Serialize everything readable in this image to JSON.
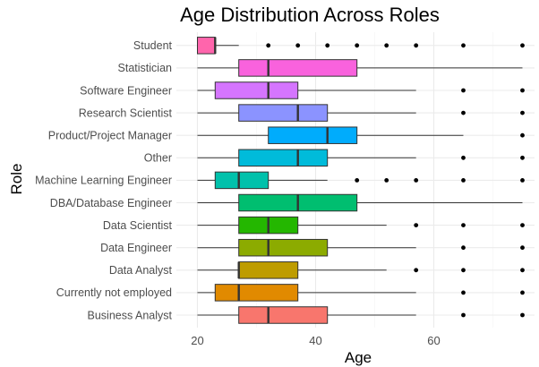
{
  "chart_data": {
    "type": "boxplot",
    "orientation": "horizontal",
    "title": "Age Distribution Across Roles",
    "xlabel": "Age",
    "ylabel": "Role",
    "xlim": [
      17,
      78
    ],
    "xticks": [
      20,
      40,
      60
    ],
    "grid": true,
    "legend": "none",
    "categories": [
      "Business Analyst",
      "Currently not employed",
      "Data Analyst",
      "Data Engineer",
      "Data Scientist",
      "DBA/Database Engineer",
      "Machine Learning Engineer",
      "Other",
      "Product/Project Manager",
      "Research Scientist",
      "Software Engineer",
      "Statistician",
      "Student"
    ],
    "boxes": [
      {
        "category": "Business Analyst",
        "whisker_low": 20,
        "q1": 27,
        "median": 32,
        "q3": 42,
        "whisker_high": 57,
        "outliers": [
          65,
          75
        ],
        "color": "#F8766D"
      },
      {
        "category": "Currently not employed",
        "whisker_low": 20,
        "q1": 23,
        "median": 27,
        "q3": 37,
        "whisker_high": 57,
        "outliers": [
          65,
          75
        ],
        "color": "#E18A00"
      },
      {
        "category": "Data Analyst",
        "whisker_low": 20,
        "q1": 27,
        "median": 27,
        "q3": 37,
        "whisker_high": 52,
        "outliers": [
          57,
          65,
          75
        ],
        "color": "#BE9C00"
      },
      {
        "category": "Data Engineer",
        "whisker_low": 20,
        "q1": 27,
        "median": 32,
        "q3": 42,
        "whisker_high": 57,
        "outliers": [
          65,
          75
        ],
        "color": "#8CAB00"
      },
      {
        "category": "Data Scientist",
        "whisker_low": 20,
        "q1": 27,
        "median": 32,
        "q3": 37,
        "whisker_high": 52,
        "outliers": [
          57,
          65,
          75
        ],
        "color": "#24B700"
      },
      {
        "category": "DBA/Database Engineer",
        "whisker_low": 20,
        "q1": 27,
        "median": 37,
        "q3": 47,
        "whisker_high": 75,
        "outliers": [],
        "color": "#00BE70"
      },
      {
        "category": "Machine Learning Engineer",
        "whisker_low": 20,
        "q1": 23,
        "median": 27,
        "q3": 32,
        "whisker_high": 42,
        "outliers": [
          47,
          52,
          57,
          65,
          75
        ],
        "color": "#00C1AB"
      },
      {
        "category": "Other",
        "whisker_low": 20,
        "q1": 27,
        "median": 37,
        "q3": 42,
        "whisker_high": 57,
        "outliers": [
          65,
          75
        ],
        "color": "#00BBDA"
      },
      {
        "category": "Product/Project Manager",
        "whisker_low": 20,
        "q1": 32,
        "median": 42,
        "q3": 47,
        "whisker_high": 65,
        "outliers": [
          75
        ],
        "color": "#00ACFC"
      },
      {
        "category": "Research Scientist",
        "whisker_low": 20,
        "q1": 27,
        "median": 37,
        "q3": 42,
        "whisker_high": 57,
        "outliers": [
          65,
          75
        ],
        "color": "#8B93FF"
      },
      {
        "category": "Software Engineer",
        "whisker_low": 20,
        "q1": 23,
        "median": 32,
        "q3": 37,
        "whisker_high": 57,
        "outliers": [
          65,
          75
        ],
        "color": "#D575FE"
      },
      {
        "category": "Statistician",
        "whisker_low": 20,
        "q1": 27,
        "median": 32,
        "q3": 47,
        "whisker_high": 75,
        "outliers": [],
        "color": "#F962DD"
      },
      {
        "category": "Student",
        "whisker_low": 20,
        "q1": 20,
        "median": 23,
        "q3": 23,
        "whisker_high": 27,
        "outliers": [
          32,
          37,
          42,
          47,
          52,
          57,
          65,
          75
        ],
        "color": "#FF65AC"
      }
    ]
  }
}
